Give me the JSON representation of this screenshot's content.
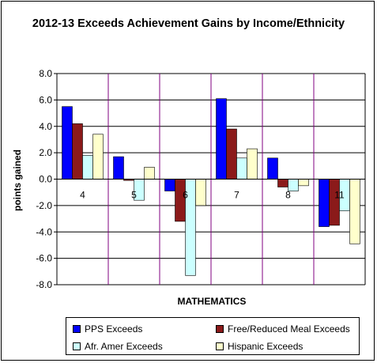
{
  "chart_data": {
    "type": "bar",
    "title": "2012-13 Exceeds Achievement Gains by Income/Ethnicity",
    "ylabel": "points gained",
    "xlabel": "MATHEMATICS",
    "categories": [
      "4",
      "5",
      "6",
      "7",
      "8",
      "11"
    ],
    "ylim": [
      -8.0,
      8.0
    ],
    "yticks": [
      "8.0",
      "6.0",
      "4.0",
      "2.0",
      "0.0",
      "-2.0",
      "-4.0",
      "-6.0",
      "-8.0"
    ],
    "grid": true,
    "legend_position": "bottom",
    "series": [
      {
        "name": "PPS Exceeds",
        "color": "#0000FF",
        "values": [
          5.5,
          1.7,
          -0.9,
          6.1,
          1.6,
          -3.6
        ]
      },
      {
        "name": "Free/Reduced Meal Exceeds",
        "color": "#8B1A1A",
        "values": [
          4.2,
          -0.1,
          -3.2,
          3.8,
          -0.6,
          -3.5
        ]
      },
      {
        "name": "Afr. Amer Exceeds",
        "color": "#CCFFFF",
        "values": [
          1.8,
          -1.6,
          -7.3,
          1.6,
          -0.9,
          -2.4
        ]
      },
      {
        "name": "Hispanic Exceeds",
        "color": "#FFFFCC",
        "values": [
          3.4,
          0.9,
          -2.0,
          2.3,
          -0.5,
          -4.9
        ]
      }
    ]
  }
}
